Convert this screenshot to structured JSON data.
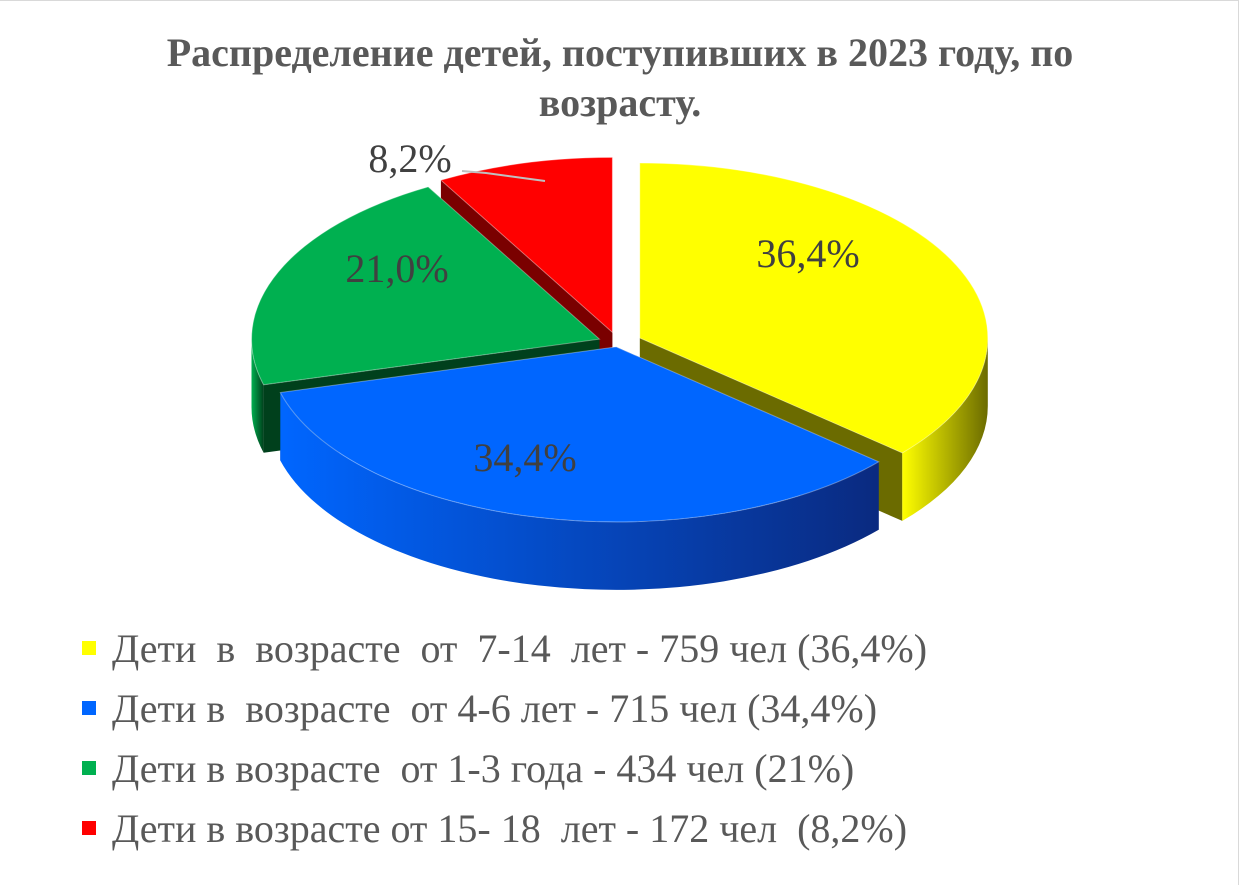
{
  "chart_data": {
    "type": "pie",
    "title": "Распределение  детей, поступивших в 2023 году, по\nвозрасту.",
    "slices": [
      {
        "label": "Дети  в  возрасте  от  7-14  лет - 759 чел (36,4%)",
        "value": 36.4,
        "data_label": "36,4%",
        "color": "#ffff00",
        "side_color": "#6b6b00"
      },
      {
        "label": "Дети в  возрасте  от 4-6 лет - 715 чел (34,4%)",
        "value": 34.4,
        "data_label": "34,4%",
        "color": "#0066ff",
        "side_color": "#0a2a80"
      },
      {
        "label": "Дети в возрасте  от 1-3 года - 434 чел (21%)",
        "value": 21.0,
        "data_label": "21,0%",
        "color": "#00b050",
        "side_color": "#00401c"
      },
      {
        "label": "Дети в возрасте от 15- 18  лет - 172 чел  (8,2%)",
        "value": 8.2,
        "data_label": "8,2%",
        "color": "#ff0000",
        "side_color": "#7a0000"
      }
    ],
    "legend_position": "bottom",
    "style": "3d-exploded"
  }
}
